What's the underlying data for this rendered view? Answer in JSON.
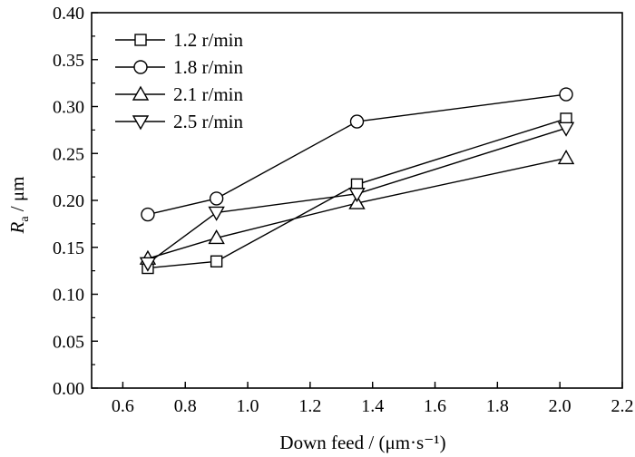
{
  "chart_data": {
    "type": "line",
    "xlabel": "Down feed / (μm·s⁻¹)",
    "ylabel_main": "R",
    "ylabel_sub": "a",
    "ylabel_unit": " / μm",
    "xlim": [
      0.5,
      2.2
    ],
    "ylim": [
      0.0,
      0.4
    ],
    "xticks": [
      0.6,
      0.8,
      1.0,
      1.2,
      1.4,
      1.6,
      1.8,
      2.0,
      2.2
    ],
    "xtick_labels": [
      "0.6",
      "0.8",
      "1.0",
      "1.2",
      "1.4",
      "1.6",
      "1.8",
      "2.0",
      "2.2"
    ],
    "yticks": [
      0.0,
      0.05,
      0.1,
      0.15,
      0.2,
      0.25,
      0.3,
      0.35,
      0.4
    ],
    "ytick_labels": [
      "0.00",
      "0.05",
      "0.10",
      "0.15",
      "0.20",
      "0.25",
      "0.30",
      "0.35",
      "0.40"
    ],
    "grid": false,
    "legend_position": "top-left",
    "series": [
      {
        "name": "1.2 r/min",
        "marker": "square",
        "x": [
          0.68,
          0.9,
          1.35,
          2.02
        ],
        "y": [
          0.128,
          0.135,
          0.217,
          0.287
        ]
      },
      {
        "name": "1.8 r/min",
        "marker": "circle",
        "x": [
          0.68,
          0.9,
          1.35,
          2.02
        ],
        "y": [
          0.185,
          0.202,
          0.284,
          0.313
        ]
      },
      {
        "name": "2.1 r/min",
        "marker": "triangle-up",
        "x": [
          0.68,
          0.9,
          1.35,
          2.02
        ],
        "y": [
          0.138,
          0.16,
          0.197,
          0.245
        ]
      },
      {
        "name": "2.5 r/min",
        "marker": "triangle-down",
        "x": [
          0.68,
          0.9,
          1.35,
          2.02
        ],
        "y": [
          0.133,
          0.187,
          0.207,
          0.277
        ]
      }
    ]
  }
}
